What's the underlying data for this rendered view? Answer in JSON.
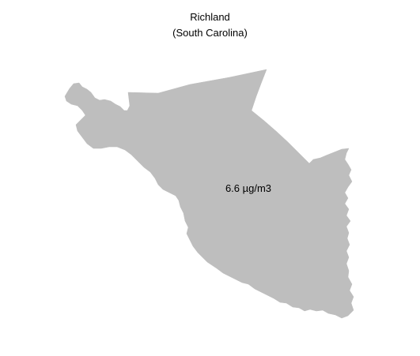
{
  "map": {
    "title": "Richland",
    "subtitle": "(South Carolina)",
    "value_label": "6.6 µg/m3",
    "fill_color": "#bebebe",
    "background_color": "#ffffff"
  }
}
